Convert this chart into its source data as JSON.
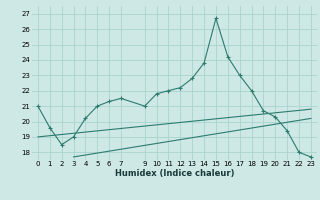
{
  "x": [
    0,
    1,
    2,
    3,
    4,
    5,
    6,
    7,
    9,
    10,
    11,
    12,
    13,
    14,
    15,
    16,
    17,
    18,
    19,
    20,
    21,
    22,
    23
  ],
  "line1": [
    21.0,
    19.6,
    18.5,
    19.0,
    20.2,
    21.0,
    21.3,
    21.5,
    21.0,
    21.8,
    22.0,
    22.2,
    22.8,
    23.8,
    26.7,
    24.2,
    23.0,
    22.0,
    20.7,
    20.3,
    19.4,
    18.0,
    17.7
  ],
  "line2_x": [
    0,
    23
  ],
  "line2_y": [
    19.0,
    20.8
  ],
  "line3_x": [
    3,
    23
  ],
  "line3_y": [
    17.7,
    20.2
  ],
  "bg_color": "#cde8e5",
  "line_color": "#2d7b6f",
  "grid_color": "#aad4cf",
  "xlabel": "Humidex (Indice chaleur)",
  "ylim": [
    17.5,
    27.5
  ],
  "xlim": [
    -0.5,
    23.5
  ],
  "yticks": [
    18,
    19,
    20,
    21,
    22,
    23,
    24,
    25,
    26,
    27
  ],
  "xticks": [
    0,
    1,
    2,
    3,
    4,
    5,
    6,
    7,
    9,
    10,
    11,
    12,
    13,
    14,
    15,
    16,
    17,
    18,
    19,
    20,
    21,
    22,
    23
  ],
  "xlabel_fontsize": 6,
  "tick_fontsize": 5
}
